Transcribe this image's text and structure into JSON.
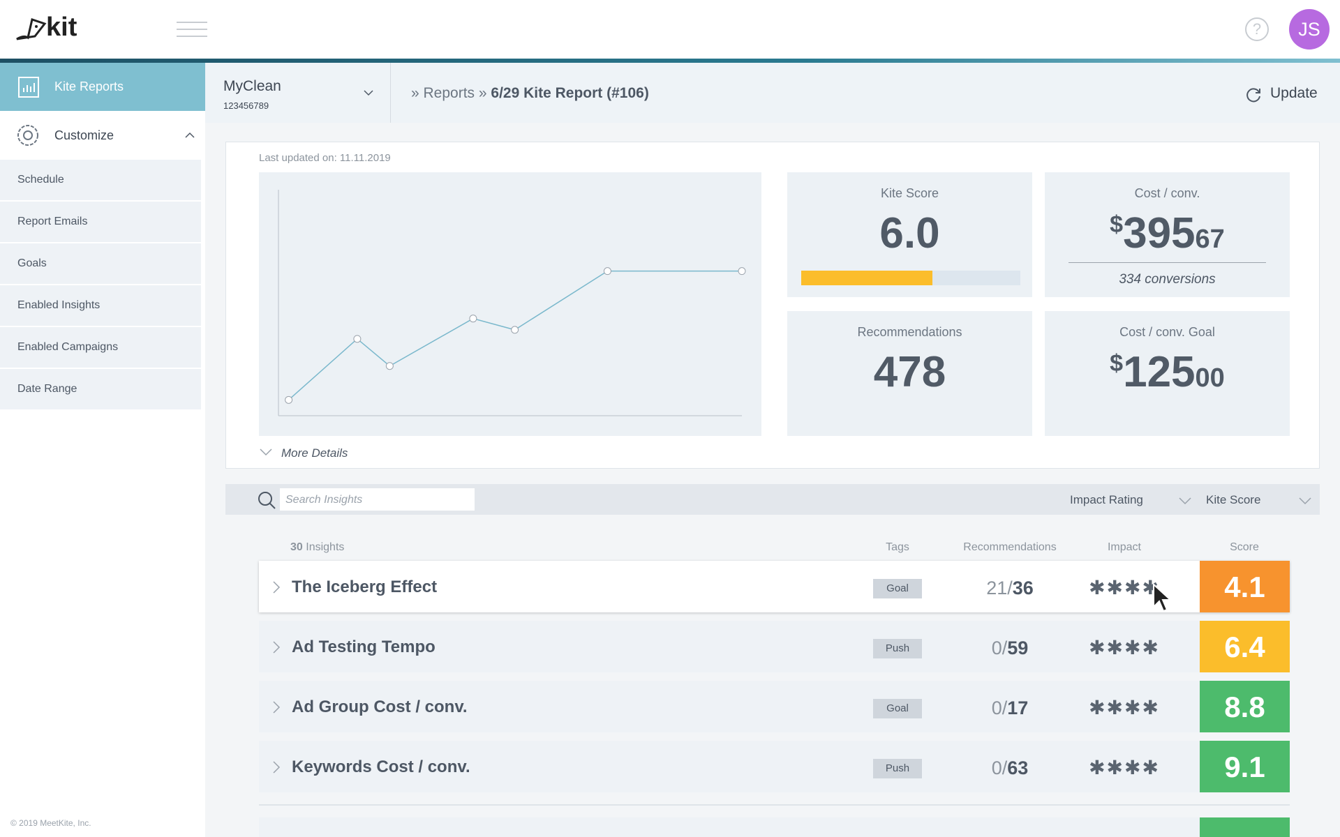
{
  "header": {
    "logo": "kit",
    "help": "?",
    "avatar": "JS"
  },
  "sidebar": {
    "active": "Kite Reports",
    "section": "Customize",
    "items": [
      "Schedule",
      "Report Emails",
      "Goals",
      "Enabled Insights",
      "Enabled Campaigns",
      "Date Range"
    ],
    "footer": "© 2019 MeetKite, Inc."
  },
  "account": {
    "name": "MyClean",
    "id": "123456789"
  },
  "breadcrumb": {
    "lead": "» Reports »",
    "current": "6/29 Kite Report (#106)"
  },
  "update": "Update",
  "last_updated": "Last updated on: 11.11.2019",
  "chart_data": {
    "type": "line",
    "x": [
      2.2,
      17,
      24,
      42,
      51,
      71,
      100
    ],
    "values": [
      0.7,
      3.4,
      2.2,
      4.3,
      3.8,
      6.4,
      6.4
    ],
    "xlim": [
      0,
      100
    ],
    "ylim": [
      0,
      10
    ],
    "color": "#7ab8cc"
  },
  "metrics": {
    "kite_score": {
      "label": "Kite Score",
      "value": "6.0",
      "bar_range": [
        0,
        10
      ]
    },
    "cost_conv": {
      "label": "Cost / conv.",
      "currency": "$",
      "whole": "395",
      "cents": "67",
      "note": "334 conversions"
    },
    "recommendations": {
      "label": "Recommendations",
      "value": "478"
    },
    "cost_goal": {
      "label": "Cost / conv. Goal",
      "currency": "$",
      "whole": "125",
      "cents": "00"
    }
  },
  "more_details": "More Details",
  "search": {
    "placeholder": "Search Insights",
    "filters": [
      "Impact Rating",
      "Kite Score"
    ]
  },
  "table": {
    "count": "30",
    "count_label": "Insights",
    "columns": [
      "Tags",
      "Recommendations",
      "Impact",
      "Score"
    ],
    "rows": [
      {
        "name": "The Iceberg Effect",
        "tag": "Goal",
        "done": "21",
        "sep": "/",
        "total": "36",
        "impact": "✱✱✱✱",
        "score": "4.1",
        "color": "#f7932e"
      },
      {
        "name": "Ad Testing Tempo",
        "tag": "Push",
        "done": "0",
        "sep": "/",
        "total": "59",
        "impact": "✱✱✱✱",
        "score": "6.4",
        "color": "#fbbd2b"
      },
      {
        "name": "Ad Group Cost / conv.",
        "tag": "Goal",
        "done": "0",
        "sep": "/",
        "total": "17",
        "impact": "✱✱✱✱",
        "score": "8.8",
        "color": "#4dbb6c"
      },
      {
        "name": "Keywords Cost / conv.",
        "tag": "Push",
        "done": "0",
        "sep": "/",
        "total": "63",
        "impact": "✱✱✱✱",
        "score": "9.1",
        "color": "#4dbb6c"
      }
    ]
  }
}
